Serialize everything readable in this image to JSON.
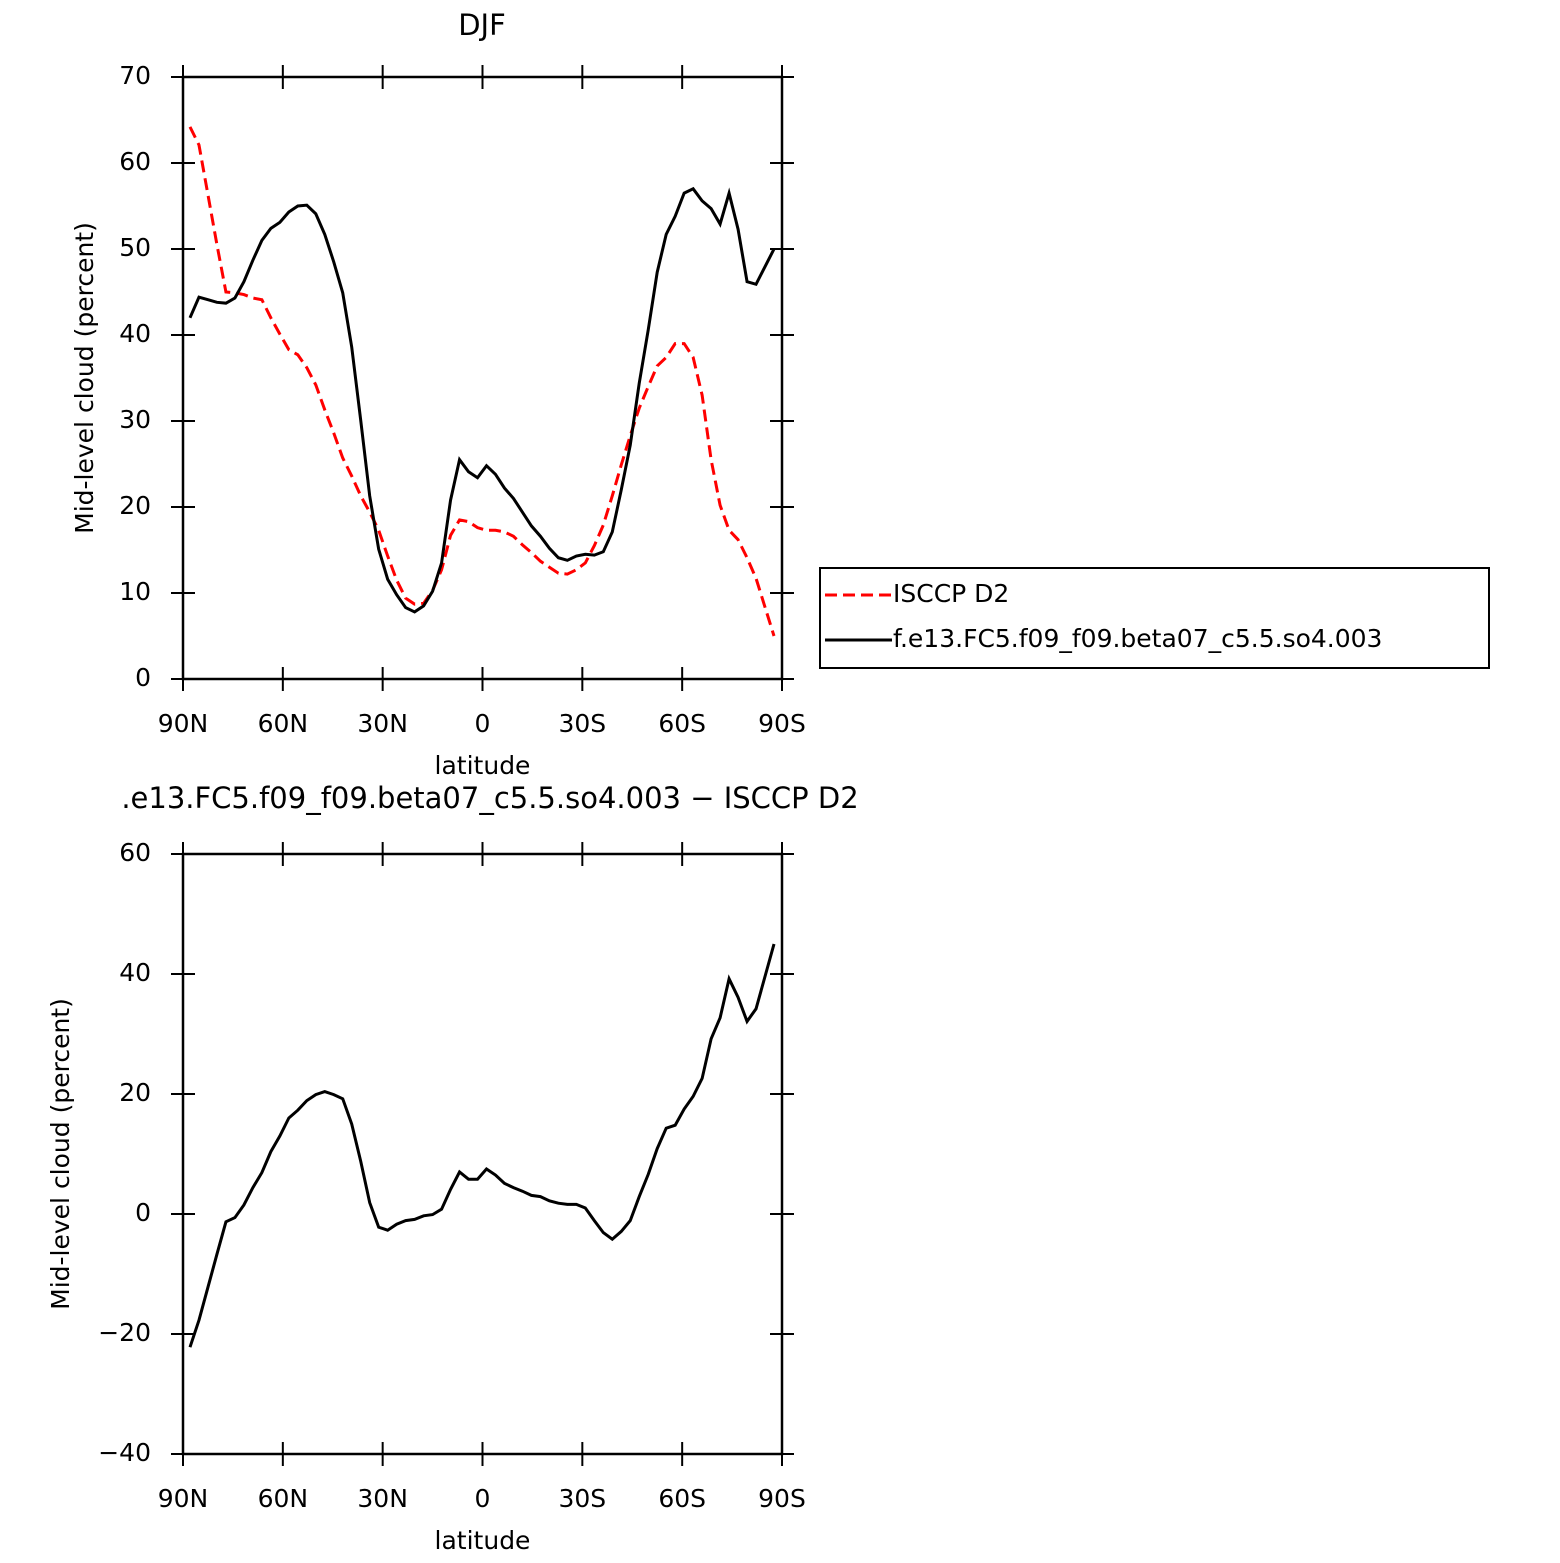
{
  "chart_data": [
    {
      "type": "line",
      "title": "DJF",
      "x_label": "latitude",
      "y_label": "Mid-level cloud (percent)",
      "x": [
        87.9,
        85.2,
        82.5,
        79.8,
        77.1,
        74.4,
        71.7,
        69,
        66.3,
        63.6,
        60.9,
        58.2,
        55.5,
        52.8,
        50.1,
        47.4,
        44.7,
        42,
        39.3,
        36.6,
        33.9,
        31.2,
        28.5,
        25.8,
        23.1,
        20.4,
        17.7,
        15,
        12.3,
        9.6,
        6.9,
        4.2,
        1.5,
        -1.2,
        -3.9,
        -6.6,
        -9.3,
        -12,
        -14.7,
        -17.4,
        -20.1,
        -22.8,
        -25.5,
        -28.2,
        -30.9,
        -33.6,
        -36.3,
        -39,
        -41.7,
        -44.4,
        -47.1,
        -49.8,
        -52.5,
        -55.2,
        -57.9,
        -60.6,
        -63.3,
        -66,
        -68.7,
        -71.4,
        -74.1,
        -76.8,
        -79.5,
        -82.2,
        -87.6
      ],
      "series": [
        {
          "name": "ISCCP D2",
          "color": "#ff0000",
          "linestyle": "dashed",
          "values": [
            64.2,
            62.1,
            56.3,
            50.5,
            45,
            44.9,
            44.7,
            44.3,
            44.1,
            42,
            40.1,
            38.3,
            37.7,
            36.2,
            34.2,
            31.3,
            28.6,
            25.7,
            23.6,
            21.3,
            19.4,
            17.3,
            14.3,
            11.5,
            9.4,
            8.7,
            8.8,
            10.3,
            12.7,
            16.7,
            18.5,
            18.3,
            17.6,
            17.3,
            17.3,
            17.1,
            16.6,
            15.6,
            14.7,
            13.7,
            13,
            12.3,
            12.2,
            12.7,
            13.5,
            15.5,
            17.9,
            21.3,
            24.9,
            28.3,
            31.5,
            34,
            36.4,
            37.4,
            39,
            39,
            37.4,
            33,
            25.5,
            20.2,
            17.3,
            16.2,
            14.1,
            11.7,
            5
          ]
        },
        {
          "name": "f.e13.FC5.f09_f09.beta07_c5.5.so4.003",
          "color": "#000000",
          "linestyle": "solid",
          "values": [
            42,
            44.4,
            44.1,
            43.8,
            43.7,
            44.3,
            46.2,
            48.7,
            51,
            52.4,
            53.1,
            54.3,
            55,
            55.1,
            54.1,
            51.7,
            48.5,
            44.9,
            38.6,
            30.1,
            21.3,
            15.1,
            11.6,
            9.8,
            8.3,
            7.8,
            8.5,
            10.2,
            13.5,
            20.8,
            25.5,
            24.1,
            23.4,
            24.8,
            23.8,
            22.2,
            21,
            19.4,
            17.8,
            16.6,
            15.2,
            14.1,
            13.8,
            14.3,
            14.5,
            14.4,
            14.8,
            17.1,
            22,
            27.2,
            34.4,
            40.6,
            47.3,
            51.7,
            53.8,
            56.5,
            57,
            55.6,
            54.7,
            52.9,
            56.5,
            52.3,
            46.2,
            45.9,
            50
          ]
        }
      ],
      "xlim": [
        90,
        -90
      ],
      "xticks": [
        {
          "value": 90,
          "label": "90N"
        },
        {
          "value": 60,
          "label": "60N"
        },
        {
          "value": 30,
          "label": "30N"
        },
        0,
        {
          "value": -30,
          "label": "30S"
        },
        {
          "value": -60,
          "label": "60S"
        },
        {
          "value": -90,
          "label": "90S"
        }
      ],
      "ylim": [
        0,
        70
      ],
      "yticks": [
        0,
        10,
        20,
        30,
        40,
        50,
        60,
        70
      ],
      "legend": "outside-right"
    },
    {
      "type": "line",
      "title": ".e13.FC5.f09_f09.beta07_c5.5.so4.003 − ISCCP D2",
      "x_label": "latitude",
      "y_label": "Mid-level cloud (percent)",
      "x": [
        87.9,
        85.2,
        82.5,
        79.8,
        77.1,
        74.4,
        71.7,
        69,
        66.3,
        63.6,
        60.9,
        58.2,
        55.5,
        52.8,
        50.1,
        47.4,
        44.7,
        42,
        39.3,
        36.6,
        33.9,
        31.2,
        28.5,
        25.8,
        23.1,
        20.4,
        17.7,
        15,
        12.3,
        9.6,
        6.9,
        4.2,
        1.5,
        -1.2,
        -3.9,
        -6.6,
        -9.3,
        -12,
        -14.7,
        -17.4,
        -20.1,
        -22.8,
        -25.5,
        -28.2,
        -30.9,
        -33.6,
        -36.3,
        -39,
        -41.7,
        -44.4,
        -47.1,
        -49.8,
        -52.5,
        -55.2,
        -57.9,
        -60.6,
        -63.3,
        -66,
        -68.7,
        -71.4,
        -74.1,
        -76.8,
        -79.5,
        -82.2,
        -87.6
      ],
      "series": [
        {
          "color": "#000000",
          "linestyle": "solid",
          "values": [
            -22.2,
            -17.7,
            -12.2,
            -6.7,
            -1.3,
            -0.6,
            1.5,
            4.4,
            6.9,
            10.4,
            13,
            16,
            17.3,
            18.9,
            19.9,
            20.4,
            19.9,
            19.2,
            15,
            8.8,
            1.9,
            -2.2,
            -2.7,
            -1.7,
            -1.1,
            -0.9,
            -0.3,
            -0.1,
            0.8,
            4.1,
            7,
            5.8,
            5.8,
            7.5,
            6.5,
            5.1,
            4.4,
            3.8,
            3.1,
            2.9,
            2.2,
            1.8,
            1.6,
            1.6,
            1,
            -1.1,
            -3.1,
            -4.2,
            -2.9,
            -1.1,
            2.9,
            6.6,
            10.9,
            14.3,
            14.8,
            17.5,
            19.6,
            22.6,
            29.2,
            32.7,
            39.2,
            36.1,
            32.1,
            34.2,
            45
          ]
        }
      ],
      "xlim": [
        90,
        -90
      ],
      "xticks": [
        {
          "value": 90,
          "label": "90N"
        },
        {
          "value": 60,
          "label": "60N"
        },
        {
          "value": 30,
          "label": "30N"
        },
        0,
        {
          "value": -30,
          "label": "30S"
        },
        {
          "value": -60,
          "label": "60S"
        },
        {
          "value": -90,
          "label": "90S"
        }
      ],
      "ylim": [
        -40,
        60
      ],
      "yticks": [
        {
          "value": -40,
          "label": "−40"
        },
        {
          "value": -20,
          "label": "−20"
        },
        0,
        20,
        40,
        60
      ]
    }
  ]
}
